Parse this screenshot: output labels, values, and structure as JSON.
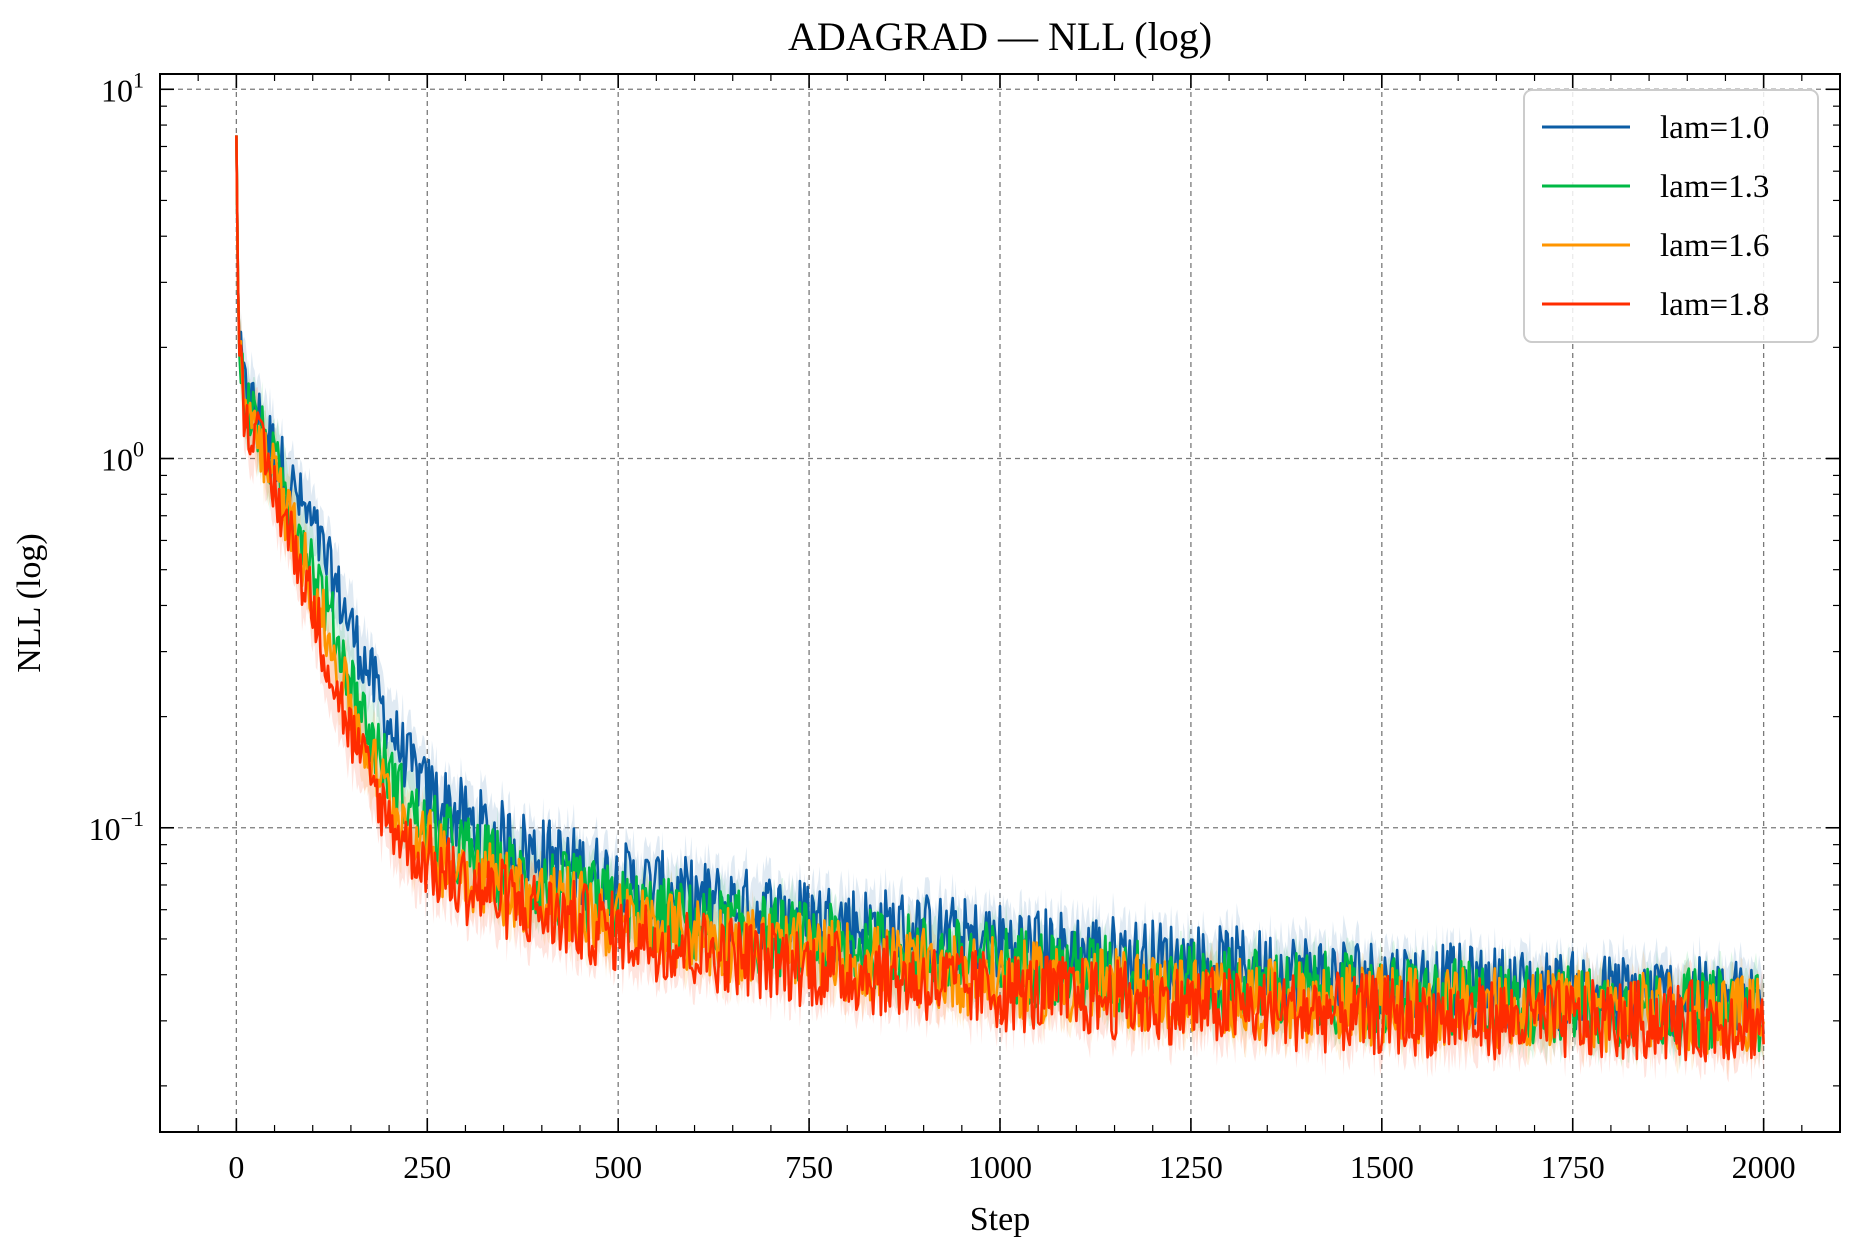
{
  "chart_data": {
    "type": "line",
    "title": "ADAGRAD — NLL (log)",
    "xlabel": "Step",
    "ylabel": "NLL (log)",
    "xscale": "linear",
    "yscale": "log",
    "xlim": [
      -100,
      2100
    ],
    "ylim": [
      0.015,
      11
    ],
    "grid": true,
    "legend_position": "top-right",
    "x_ticks": [
      0,
      250,
      500,
      750,
      1000,
      1250,
      1500,
      1750,
      2000
    ],
    "x_tick_labels": [
      "0",
      "250",
      "500",
      "750",
      "1000",
      "1250",
      "1500",
      "1750",
      "2000"
    ],
    "y_ticks": [
      10,
      1,
      0.1
    ],
    "y_tick_labels": [
      {
        "base": "10",
        "exp": "1"
      },
      {
        "base": "10",
        "exp": "0"
      },
      {
        "base": "10",
        "exp": "−1"
      }
    ],
    "series": [
      {
        "name": "lam=1.0",
        "color": "#0C5DA5",
        "x": [
          0,
          3,
          10,
          25,
          50,
          75,
          100,
          125,
          150,
          175,
          200,
          225,
          250,
          300,
          350,
          400,
          500,
          600,
          750,
          1000,
          1250,
          1500,
          1750,
          2000
        ],
        "y": [
          7.5,
          2.0,
          1.55,
          1.35,
          1.05,
          0.82,
          0.65,
          0.48,
          0.35,
          0.26,
          0.19,
          0.15,
          0.125,
          0.104,
          0.092,
          0.084,
          0.072,
          0.064,
          0.057,
          0.049,
          0.043,
          0.039,
          0.036,
          0.034
        ]
      },
      {
        "name": "lam=1.3",
        "color": "#00B945",
        "x": [
          0,
          3,
          10,
          25,
          50,
          75,
          100,
          125,
          150,
          175,
          200,
          225,
          250,
          300,
          350,
          400,
          500,
          600,
          750,
          1000,
          1250,
          1500,
          1750,
          2000
        ],
        "y": [
          7.5,
          2.0,
          1.5,
          1.25,
          0.95,
          0.72,
          0.52,
          0.36,
          0.25,
          0.18,
          0.14,
          0.115,
          0.098,
          0.085,
          0.076,
          0.07,
          0.061,
          0.055,
          0.049,
          0.043,
          0.038,
          0.035,
          0.033,
          0.032
        ]
      },
      {
        "name": "lam=1.6",
        "color": "#FF9500",
        "x": [
          0,
          3,
          10,
          25,
          50,
          75,
          100,
          125,
          150,
          175,
          200,
          225,
          250,
          300,
          350,
          400,
          500,
          600,
          750,
          1000,
          1250,
          1500,
          1750,
          2000
        ],
        "y": [
          7.5,
          2.0,
          1.45,
          1.2,
          0.88,
          0.64,
          0.45,
          0.3,
          0.21,
          0.155,
          0.12,
          0.1,
          0.088,
          0.077,
          0.07,
          0.064,
          0.056,
          0.051,
          0.045,
          0.039,
          0.035,
          0.033,
          0.032,
          0.031
        ]
      },
      {
        "name": "lam=1.8",
        "color": "#FF2C00",
        "x": [
          0,
          3,
          10,
          25,
          50,
          75,
          100,
          125,
          150,
          175,
          200,
          225,
          250,
          300,
          350,
          400,
          500,
          600,
          750,
          1000,
          1250,
          1500,
          1750,
          2000
        ],
        "y": [
          7.5,
          2.0,
          1.4,
          1.15,
          0.82,
          0.58,
          0.4,
          0.26,
          0.18,
          0.135,
          0.105,
          0.09,
          0.08,
          0.07,
          0.064,
          0.059,
          0.052,
          0.047,
          0.042,
          0.036,
          0.033,
          0.031,
          0.03,
          0.03
        ]
      }
    ]
  }
}
